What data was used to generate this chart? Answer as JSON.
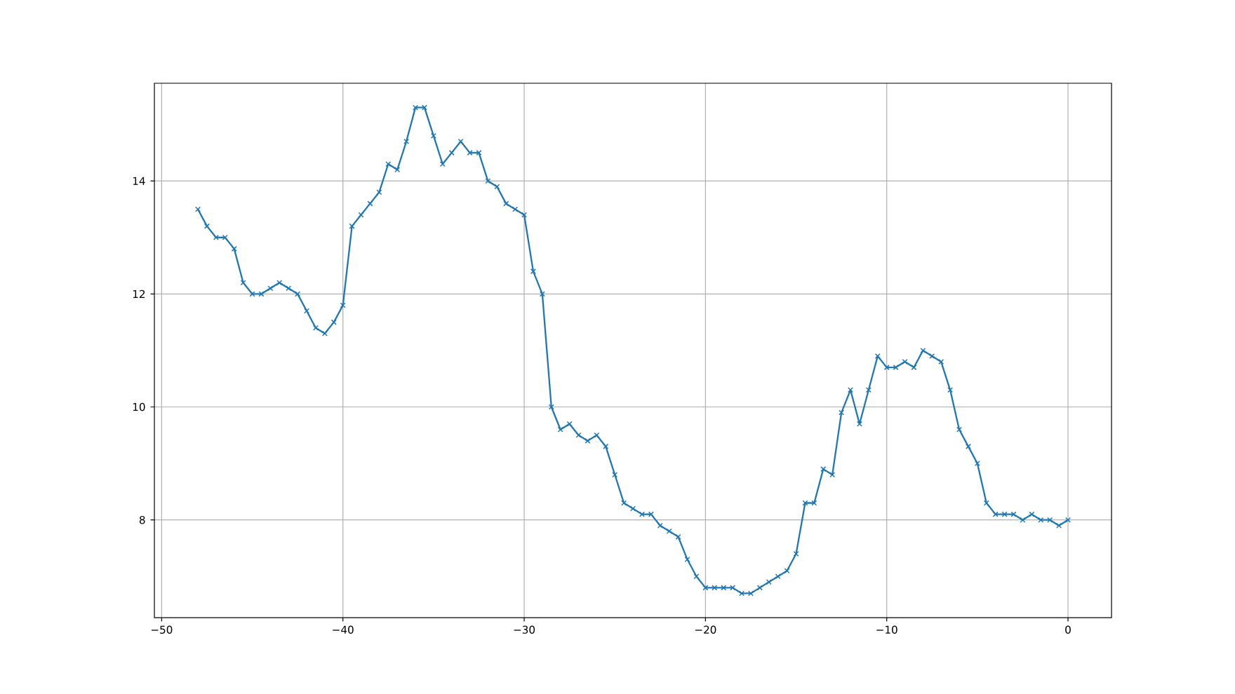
{
  "chart_data": {
    "type": "line",
    "x": [
      -48,
      -47.5,
      -47,
      -46.5,
      -46,
      -45.5,
      -45,
      -44.5,
      -44,
      -43.5,
      -43,
      -42.5,
      -42,
      -41.5,
      -41,
      -40.5,
      -40,
      -39.5,
      -39,
      -38.5,
      -38,
      -37.5,
      -37,
      -36.5,
      -36,
      -35.5,
      -35,
      -34.5,
      -34,
      -33.5,
      -33,
      -32.5,
      -32,
      -31.5,
      -31,
      -30.5,
      -30,
      -29.5,
      -29,
      -28.5,
      -28,
      -27.5,
      -27,
      -26.5,
      -26,
      -25.5,
      -25,
      -24.5,
      -24,
      -23.5,
      -23,
      -22.5,
      -22,
      -21.5,
      -21,
      -20.5,
      -20,
      -19.5,
      -19,
      -18.5,
      -18,
      -17.5,
      -17,
      -16.5,
      -16,
      -15.5,
      -15,
      -14.5,
      -14,
      -13.5,
      -13,
      -12.5,
      -12,
      -11.5,
      -11,
      -10.5,
      -10,
      -9.5,
      -9,
      -8.5,
      -8,
      -7.5,
      -7,
      -6.5,
      -6,
      -5.5,
      -5,
      -4.5,
      -4,
      -3.5,
      -3,
      -2.5,
      -2,
      -1.5,
      -1,
      -0.5,
      0
    ],
    "values": [
      13.5,
      13.2,
      13.0,
      13.0,
      12.8,
      12.2,
      12.0,
      12.0,
      12.1,
      12.2,
      12.1,
      12.0,
      11.7,
      11.4,
      11.3,
      11.5,
      11.8,
      13.2,
      13.4,
      13.6,
      13.8,
      14.3,
      14.2,
      14.7,
      15.3,
      15.3,
      14.8,
      14.3,
      14.5,
      14.7,
      14.5,
      14.5,
      14.0,
      13.9,
      13.6,
      13.5,
      13.4,
      12.4,
      12.0,
      10.0,
      9.6,
      9.7,
      9.5,
      9.4,
      9.5,
      9.3,
      8.8,
      8.3,
      8.2,
      8.1,
      8.1,
      7.9,
      7.8,
      7.7,
      7.3,
      7.0,
      6.8,
      6.8,
      6.8,
      6.8,
      6.7,
      6.7,
      6.8,
      6.9,
      7.0,
      7.1,
      7.4,
      8.3,
      8.3,
      8.9,
      8.8,
      9.9,
      10.3,
      9.7,
      10.3,
      10.9,
      10.7,
      10.7,
      10.8,
      10.7,
      11.0,
      10.9,
      10.8,
      10.3,
      9.6,
      9.3,
      9.0,
      8.3,
      8.1,
      8.1,
      8.1,
      8.0,
      8.1,
      8.0,
      8.0,
      7.9,
      8.0
    ],
    "color": "#1f77b4",
    "marker": "cross",
    "line_style": "solid",
    "grid": true,
    "xlim": [
      -50.4,
      2.4
    ],
    "ylim": [
      6.27,
      15.73
    ],
    "xticks": [
      {
        "value": -50,
        "label": "−50"
      },
      {
        "value": -40,
        "label": "−40"
      },
      {
        "value": -30,
        "label": "−30"
      },
      {
        "value": -20,
        "label": "−20"
      },
      {
        "value": -10,
        "label": "−10"
      },
      0
    ],
    "yticks": [
      8,
      10,
      12,
      14
    ]
  }
}
